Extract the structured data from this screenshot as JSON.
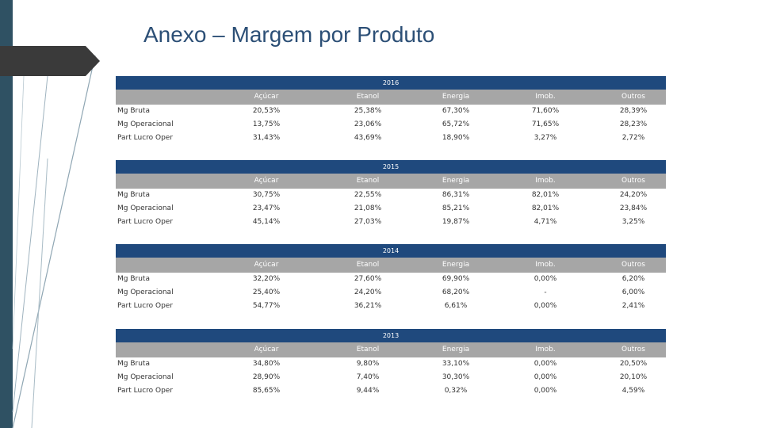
{
  "title": "Anexo – Margem por Produto",
  "columns": [
    "Açúcar",
    "Etanol",
    "Energia",
    "Imob.",
    "Outros"
  ],
  "tables": [
    {
      "year": "2016",
      "rows": [
        {
          "label": "Mg Bruta",
          "values": [
            "20,53%",
            "25,38%",
            "67,30%",
            "71,60%",
            "28,39%"
          ]
        },
        {
          "label": "Mg Operacional",
          "values": [
            "13,75%",
            "23,06%",
            "65,72%",
            "71,65%",
            "28,23%"
          ]
        },
        {
          "label": "Part Lucro Oper",
          "values": [
            "31,43%",
            "43,69%",
            "18,90%",
            "3,27%",
            "2,72%"
          ]
        }
      ]
    },
    {
      "year": "2015",
      "rows": [
        {
          "label": "Mg Bruta",
          "values": [
            "30,75%",
            "22,55%",
            "86,31%",
            "82,01%",
            "24,20%"
          ]
        },
        {
          "label": "Mg Operacional",
          "values": [
            "23,47%",
            "21,08%",
            "85,21%",
            "82,01%",
            "23,84%"
          ]
        },
        {
          "label": "Part Lucro Oper",
          "values": [
            "45,14%",
            "27,03%",
            "19,87%",
            "4,71%",
            "3,25%"
          ]
        }
      ]
    },
    {
      "year": "2014",
      "rows": [
        {
          "label": "Mg Bruta",
          "values": [
            "32,20%",
            "27,60%",
            "69,90%",
            "0,00%",
            "6,20%"
          ]
        },
        {
          "label": "Mg Operacional",
          "values": [
            "25,40%",
            "24,20%",
            "68,20%",
            "-",
            "6,00%"
          ]
        },
        {
          "label": "Part Lucro Oper",
          "values": [
            "54,77%",
            "36,21%",
            "6,61%",
            "0,00%",
            "2,41%"
          ]
        }
      ]
    },
    {
      "year": "2013",
      "rows": [
        {
          "label": "Mg Bruta",
          "values": [
            "34,80%",
            "9,80%",
            "33,10%",
            "0,00%",
            "20,50%"
          ]
        },
        {
          "label": "Mg Operacional",
          "values": [
            "28,90%",
            "7,40%",
            "30,30%",
            "0,00%",
            "20,10%"
          ]
        },
        {
          "label": "Part Lucro Oper",
          "values": [
            "85,65%",
            "9,44%",
            "0,32%",
            "0,00%",
            "4,59%"
          ]
        }
      ]
    }
  ]
}
